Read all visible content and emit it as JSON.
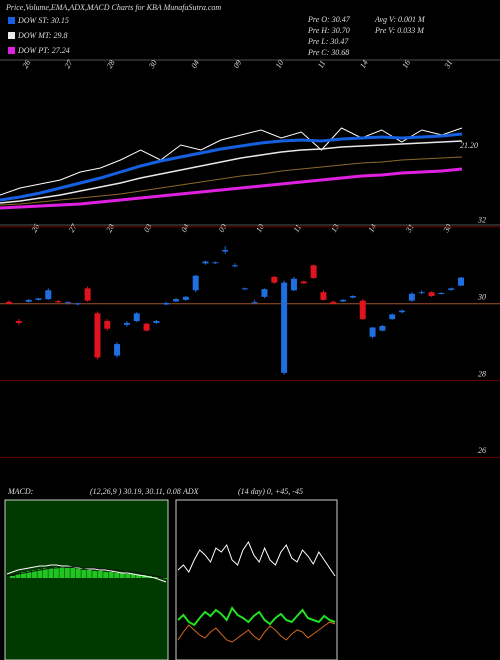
{
  "chart_data": [
    {
      "type": "line",
      "title": "Price,Volume,EMA,ADX,MACD Charts for KBA MunafaSutra.com",
      "info": [
        "Pre  O: 30.47",
        "Pre  H: 30.70",
        "Pre  L: 30.47",
        "Pre  C: 30.68",
        "Avg V: 0.001 M",
        "Pre  V: 0.033 M"
      ],
      "annotation": "21.20",
      "date_labels": [
        "26",
        "27",
        "28",
        "30",
        "04",
        "09",
        "10",
        "11",
        "14",
        "16",
        "31"
      ],
      "ylim": [
        0,
        155
      ],
      "series": [
        {
          "color": "#ffffff",
          "width": 1,
          "values": [
            20,
            27,
            31,
            35,
            43,
            47,
            55,
            65,
            55,
            70,
            65,
            75,
            80,
            85,
            77,
            83,
            65,
            87,
            77,
            85,
            73,
            85,
            80,
            87
          ]
        },
        {
          "color": "#8a6a2a",
          "width": 1,
          "values": [
            10,
            11,
            13,
            15,
            17,
            19,
            21,
            24,
            27,
            30,
            33,
            36,
            39,
            41,
            44,
            46,
            48,
            50,
            52,
            53,
            55,
            56,
            57,
            58
          ]
        },
        {
          "name": "DOW PT: 27.24",
          "color": "#e020e0",
          "width": 3,
          "values": [
            7,
            8,
            9,
            10,
            11,
            13,
            15,
            17,
            19,
            21,
            23,
            25,
            27,
            29,
            31,
            33,
            35,
            37,
            39,
            40,
            42,
            43,
            44,
            46
          ]
        },
        {
          "name": "DOW MT: 29.8",
          "color": "#e8e8e8",
          "width": 1.5,
          "values": [
            12,
            14,
            17,
            20,
            24,
            28,
            32,
            37,
            41,
            45,
            49,
            53,
            57,
            60,
            63,
            65,
            66,
            68,
            69,
            70,
            71,
            72,
            73,
            74
          ]
        },
        {
          "name": "DOW ST: 30.15",
          "color": "#1560e0",
          "width": 3,
          "values": [
            15,
            18,
            22,
            27,
            32,
            37,
            43,
            49,
            54,
            58,
            62,
            66,
            69,
            72,
            74,
            75,
            74,
            76,
            77,
            78,
            77,
            78,
            79,
            81
          ]
        }
      ]
    },
    {
      "type": "candlestick",
      "date_labels": [
        "26",
        "27",
        "28",
        "03",
        "04",
        "09",
        "10",
        "11",
        "13",
        "14",
        "31",
        "30"
      ],
      "ylim": [
        25.15,
        32.05
      ],
      "yticks": [
        26,
        28,
        30,
        32
      ],
      "up_color": "#1e6fe0",
      "down_color": "#e0141e",
      "open": [
        30.05,
        29.55,
        30.05,
        30.1,
        30.12,
        30.07,
        30.02,
        30.0,
        30.4,
        29.75,
        29.55,
        28.65,
        29.45,
        29.55,
        29.48,
        29.5,
        29.98,
        30.06,
        30.1,
        30.35,
        31.05,
        31.06,
        31.36,
        30.98,
        30.38,
        30.02,
        30.18,
        30.7,
        28.2,
        30.35,
        30.58,
        31.0,
        30.3,
        30.05,
        30.06,
        30.16,
        30.08,
        29.14,
        29.3,
        29.6,
        29.78,
        30.08,
        30.28,
        30.3,
        30.26,
        30.36,
        30.47
      ],
      "high": [
        30.08,
        29.6,
        30.12,
        30.15,
        30.4,
        30.1,
        30.06,
        30.03,
        30.45,
        29.8,
        29.6,
        29.0,
        29.55,
        29.78,
        29.5,
        29.58,
        30.05,
        30.15,
        30.2,
        30.75,
        31.12,
        31.1,
        31.5,
        31.05,
        30.42,
        30.1,
        30.4,
        30.72,
        30.6,
        30.7,
        30.6,
        31.02,
        30.35,
        30.08,
        30.12,
        30.22,
        30.12,
        29.4,
        29.45,
        29.75,
        29.85,
        30.3,
        30.35,
        30.32,
        30.3,
        30.42,
        30.7
      ],
      "low": [
        29.98,
        29.45,
        30.03,
        30.08,
        30.1,
        30.02,
        29.98,
        29.96,
        30.05,
        28.55,
        29.3,
        28.6,
        29.4,
        29.52,
        29.28,
        29.48,
        29.96,
        30.04,
        30.08,
        30.3,
        31.02,
        31.03,
        31.3,
        30.95,
        30.36,
        30.0,
        30.15,
        30.52,
        28.15,
        30.33,
        30.52,
        30.65,
        30.08,
        29.98,
        30.04,
        30.14,
        29.58,
        29.1,
        29.28,
        29.58,
        29.75,
        30.05,
        30.25,
        30.18,
        30.24,
        30.34,
        30.47
      ],
      "close": [
        30.0,
        29.5,
        30.1,
        30.14,
        30.35,
        30.04,
        30.04,
        30.01,
        30.08,
        28.6,
        29.35,
        28.95,
        29.5,
        29.75,
        29.3,
        29.55,
        30.02,
        30.12,
        30.18,
        30.73,
        31.1,
        31.08,
        31.4,
        31.0,
        30.4,
        30.04,
        30.38,
        30.55,
        30.55,
        30.65,
        30.53,
        30.67,
        30.1,
        30.0,
        30.1,
        30.2,
        29.6,
        29.38,
        29.42,
        29.72,
        29.82,
        30.26,
        30.3,
        30.2,
        30.28,
        30.4,
        30.68
      ]
    },
    {
      "type": "macd",
      "title": "MACD:",
      "subtitle": "(12,26,9 ) 30.19, 30.11, 0.08",
      "ylim": [
        -82,
        78
      ],
      "color": "#22c422",
      "values": [
        0,
        2,
        4,
        6,
        7,
        8,
        9,
        10,
        10,
        11,
        11,
        10,
        10,
        9,
        8,
        8,
        7,
        7,
        6,
        6,
        5,
        5,
        4,
        4,
        3,
        3,
        2,
        1,
        0,
        -1
      ],
      "series": [
        {
          "color": "#ffffff",
          "values": [
            4,
            6,
            8,
            9,
            10,
            11,
            12,
            12,
            13,
            13,
            12,
            12,
            11,
            10,
            10,
            9,
            9,
            8,
            8,
            7,
            6,
            5,
            5,
            4,
            3,
            2,
            1,
            0,
            -2,
            -4
          ]
        },
        {
          "color": "#111111",
          "values": [
            2,
            3,
            4,
            5,
            6,
            7,
            8,
            9,
            10,
            10,
            11,
            11,
            11,
            11,
            10,
            10,
            10,
            9,
            9,
            8,
            8,
            7,
            6,
            6,
            5,
            4,
            3,
            2,
            1,
            0
          ]
        }
      ]
    },
    {
      "type": "line",
      "title": "ADX",
      "subtitle": "(14 day) 0, +45, -45",
      "ylim": [
        0,
        160
      ],
      "series": [
        {
          "color": "#ffffff",
          "width": 1,
          "values": [
            90,
            95,
            88,
            100,
            110,
            105,
            98,
            112,
            108,
            115,
            100,
            95,
            110,
            118,
            105,
            98,
            112,
            100,
            95,
            108,
            115,
            102,
            98,
            110,
            104,
            96,
            108,
            100,
            92,
            84
          ]
        },
        {
          "color": "#22e022",
          "width": 2,
          "values": [
            40,
            45,
            38,
            35,
            42,
            48,
            44,
            50,
            46,
            40,
            52,
            45,
            42,
            38,
            44,
            48,
            40,
            36,
            42,
            46,
            40,
            38,
            44,
            50,
            42,
            40,
            38,
            44,
            40,
            38
          ]
        },
        {
          "color": "#d2691e",
          "width": 1,
          "values": [
            20,
            28,
            35,
            30,
            25,
            22,
            28,
            32,
            26,
            20,
            18,
            22,
            26,
            30,
            24,
            20,
            28,
            34,
            30,
            24,
            20,
            26,
            30,
            28,
            22,
            26,
            30,
            34,
            38,
            36
          ]
        }
      ]
    }
  ]
}
